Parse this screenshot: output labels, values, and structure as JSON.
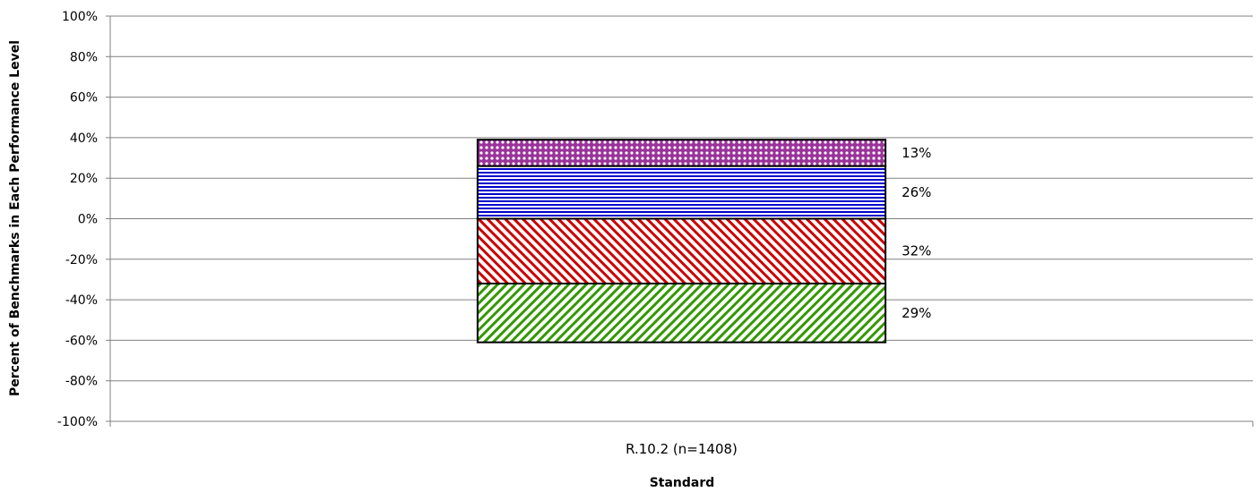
{
  "chart_data": {
    "type": "bar",
    "stacked": true,
    "diverging": true,
    "xlabel": "Standard",
    "ylabel": "Percent of Benchmarks in Each Performance Level",
    "ylim": [
      -100,
      100
    ],
    "ytick_step": 20,
    "yticks": [
      "-100%",
      "-80%",
      "-60%",
      "-40%",
      "-20%",
      "0%",
      "20%",
      "40%",
      "60%",
      "80%",
      "100%"
    ],
    "grid": true,
    "categories": [
      "R.10.2 (n=1408)"
    ],
    "series": [
      {
        "values": [
          -32
        ],
        "label": "32%",
        "color": "#cc0000",
        "pattern": "diagonal-backslash"
      },
      {
        "values": [
          -29
        ],
        "label": "29%",
        "color": "#339900",
        "pattern": "diagonal-slash"
      },
      {
        "values": [
          26
        ],
        "label": "26%",
        "color": "#0000cc",
        "pattern": "horizontal-lines"
      },
      {
        "values": [
          13
        ],
        "label": "13%",
        "color": "#993399",
        "pattern": "dots"
      }
    ]
  }
}
